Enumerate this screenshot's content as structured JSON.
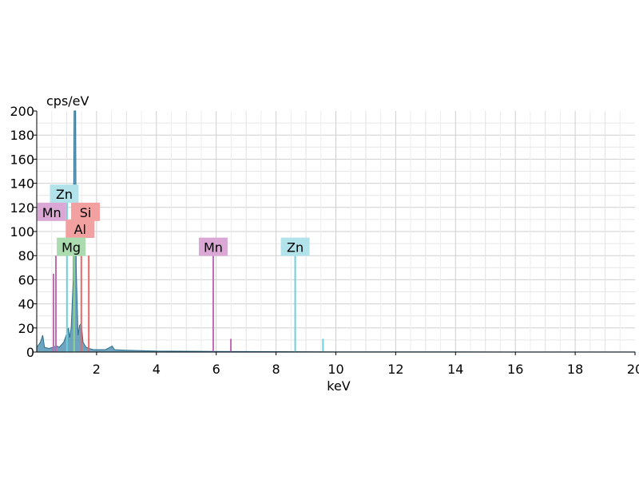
{
  "chart_data": {
    "type": "area",
    "xlabel": "keV",
    "ylabel": "cps/eV",
    "xlim": [
      0,
      20
    ],
    "ylim": [
      0,
      200
    ],
    "x_ticks": [
      2,
      4,
      6,
      8,
      10,
      12,
      14,
      16,
      18,
      20
    ],
    "y_ticks": [
      0,
      20,
      40,
      60,
      80,
      100,
      120,
      140,
      160,
      180,
      200
    ],
    "grid": true,
    "series": [
      {
        "color": "#3f86a8",
        "points": [
          [
            0.0,
            4
          ],
          [
            0.12,
            8
          ],
          [
            0.2,
            14
          ],
          [
            0.26,
            4
          ],
          [
            0.4,
            3
          ],
          [
            0.55,
            4
          ],
          [
            0.66,
            5
          ],
          [
            0.75,
            4
          ],
          [
            0.9,
            8
          ],
          [
            1.0,
            15
          ],
          [
            1.06,
            20
          ],
          [
            1.1,
            12
          ],
          [
            1.15,
            20
          ],
          [
            1.22,
            60
          ],
          [
            1.25,
            200
          ],
          [
            1.3,
            200
          ],
          [
            1.32,
            70
          ],
          [
            1.38,
            14
          ],
          [
            1.43,
            22
          ],
          [
            1.49,
            24
          ],
          [
            1.55,
            8
          ],
          [
            1.65,
            4
          ],
          [
            1.74,
            3
          ],
          [
            1.9,
            2
          ],
          [
            2.1,
            2
          ],
          [
            2.3,
            2
          ],
          [
            2.45,
            4
          ],
          [
            2.52,
            5
          ],
          [
            2.6,
            2
          ],
          [
            3.0,
            1.5
          ],
          [
            4.0,
            0.8
          ],
          [
            6.0,
            0.5
          ],
          [
            8.0,
            0.3
          ],
          [
            10.0,
            0.2
          ],
          [
            14.0,
            0.1
          ],
          [
            20.0,
            0.05
          ]
        ]
      }
    ],
    "element_lines": [
      {
        "element": "Mn",
        "x": 0.56,
        "height": 65,
        "color": "#c06bb4"
      },
      {
        "element": "Mn",
        "x": 0.64,
        "height": 80,
        "color": "#c06bb4"
      },
      {
        "element": "Zn",
        "x": 1.01,
        "height": 130,
        "color": "#6ccfdb"
      },
      {
        "element": "Mg",
        "x": 1.25,
        "height": 90,
        "color": "#8fd18f"
      },
      {
        "element": "Al",
        "x": 1.49,
        "height": 80,
        "color": "#e86868"
      },
      {
        "element": "Si",
        "x": 1.74,
        "height": 80,
        "color": "#e86868"
      },
      {
        "element": "Mn",
        "x": 5.9,
        "height": 80,
        "color": "#c06bb4"
      },
      {
        "element": "Mn",
        "x": 6.49,
        "height": 11,
        "color": "#c06bb4"
      },
      {
        "element": "Zn",
        "x": 8.64,
        "height": 80,
        "color": "#6ccfdb"
      },
      {
        "element": "Zn",
        "x": 9.57,
        "height": 11,
        "color": "#6ccfdb"
      }
    ],
    "element_labels": [
      {
        "text": "Zn",
        "x": 0.92,
        "y": 131,
        "bg": "#b3e3ea"
      },
      {
        "text": "Mn",
        "x": 0.5,
        "y": 116,
        "bg": "#dba8d6"
      },
      {
        "text": "Si",
        "x": 1.63,
        "y": 116,
        "bg": "#f2a0a0"
      },
      {
        "text": "Al",
        "x": 1.45,
        "y": 102,
        "bg": "#f2a0a0"
      },
      {
        "text": "Mg",
        "x": 1.15,
        "y": 87,
        "bg": "#abdcb0"
      },
      {
        "text": "Mn",
        "x": 5.9,
        "y": 87,
        "bg": "#dba8d6"
      },
      {
        "text": "Zn",
        "x": 8.64,
        "y": 87,
        "bg": "#b3e3ea"
      }
    ]
  }
}
